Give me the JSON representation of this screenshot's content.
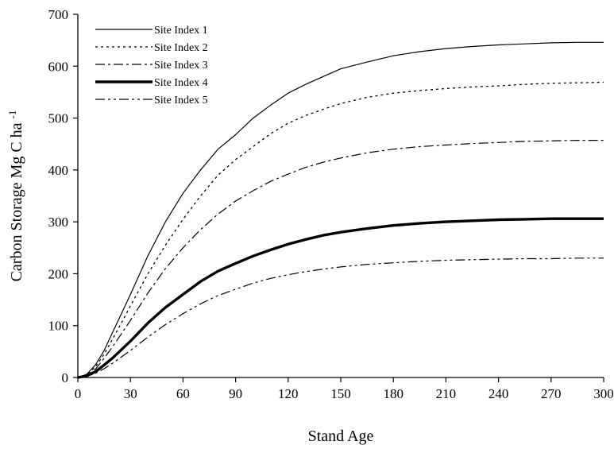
{
  "chart_data": {
    "type": "line",
    "title": "",
    "xlabel": "Stand Age",
    "ylabel": "Carbon Storage Mg C ha",
    "ylabel_superscript": "-1",
    "xlim": [
      0,
      300
    ],
    "ylim": [
      0,
      700
    ],
    "x_ticks": [
      "0",
      "30",
      "60",
      "90",
      "120",
      "150",
      "180",
      "210",
      "240",
      "270",
      "300"
    ],
    "y_ticks": [
      "0",
      "100",
      "200",
      "300",
      "400",
      "500",
      "600",
      "700"
    ],
    "grid": false,
    "legend_position": "top-left",
    "x": [
      0,
      5,
      10,
      15,
      20,
      25,
      30,
      40,
      50,
      60,
      70,
      80,
      90,
      100,
      110,
      120,
      130,
      140,
      150,
      165,
      180,
      195,
      210,
      225,
      240,
      255,
      270,
      285,
      300
    ],
    "series": [
      {
        "name": "Site Index 1",
        "style": "solid",
        "width": 1.2,
        "values": [
          0,
          6,
          24,
          52,
          88,
          124,
          160,
          235,
          300,
          355,
          400,
          440,
          468,
          500,
          525,
          548,
          565,
          580,
          595,
          608,
          620,
          628,
          634,
          638,
          641,
          643,
          645,
          646,
          646
        ]
      },
      {
        "name": "Site Index 2",
        "style": "dotted",
        "width": 1.3,
        "values": [
          0,
          5,
          20,
          45,
          75,
          106,
          138,
          200,
          255,
          305,
          350,
          390,
          420,
          445,
          470,
          490,
          505,
          517,
          528,
          540,
          548,
          553,
          557,
          560,
          562,
          565,
          567,
          568,
          569
        ]
      },
      {
        "name": "Site Index 3",
        "style": "dashdot",
        "width": 1.2,
        "values": [
          0,
          4,
          16,
          37,
          60,
          85,
          110,
          163,
          210,
          250,
          285,
          315,
          340,
          360,
          378,
          392,
          405,
          415,
          423,
          433,
          440,
          445,
          448,
          451,
          453,
          455,
          456,
          457,
          457
        ]
      },
      {
        "name": "Site Index 4",
        "style": "solid",
        "width": 3.4,
        "values": [
          0,
          3,
          11,
          24,
          38,
          54,
          70,
          105,
          135,
          160,
          185,
          205,
          220,
          234,
          246,
          257,
          266,
          274,
          280,
          287,
          293,
          297,
          300,
          302,
          304,
          305,
          306,
          306,
          306
        ]
      },
      {
        "name": "Site Index 5",
        "style": "dashdotdot",
        "width": 1.2,
        "values": [
          0,
          2,
          8,
          17,
          28,
          40,
          52,
          78,
          102,
          123,
          142,
          158,
          170,
          182,
          191,
          198,
          204,
          209,
          213,
          218,
          221,
          224,
          226,
          227,
          228,
          229,
          229,
          230,
          230
        ]
      }
    ]
  }
}
